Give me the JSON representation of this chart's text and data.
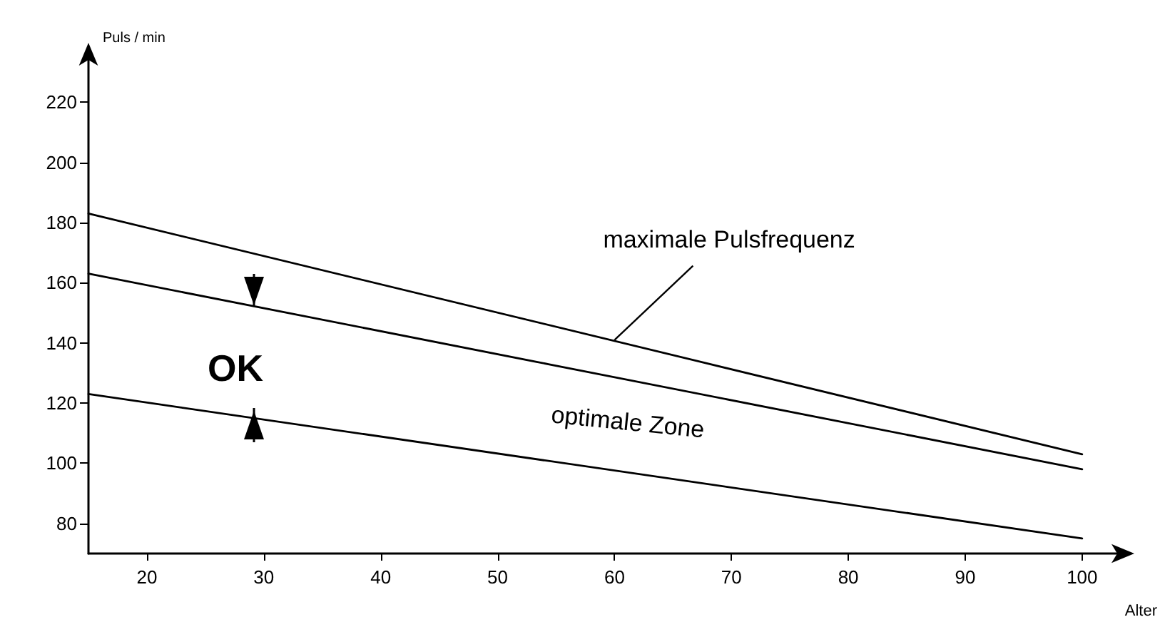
{
  "chart_data": {
    "type": "line",
    "xlabel": "Alter",
    "ylabel": "Puls / min",
    "xlim": [
      15,
      103
    ],
    "ylim": [
      70,
      235
    ],
    "xticks": [
      20,
      30,
      40,
      50,
      60,
      70,
      80,
      90,
      100
    ],
    "yticks": [
      80,
      100,
      120,
      140,
      160,
      180,
      200,
      220
    ],
    "x": [
      15,
      100
    ],
    "series": [
      {
        "color": "#000000",
        "values": [
          183,
          103
        ]
      },
      {
        "color": "#000000",
        "values": [
          163,
          98
        ]
      },
      {
        "color": "#000000",
        "values": [
          123,
          75
        ]
      }
    ],
    "annotations": [
      "OK",
      {
        "text": "maximale Pulsfrequenz",
        "x": 60,
        "y": 141
      },
      "optimale Zone"
    ],
    "grid": false,
    "marker": "none",
    "line_style": "solid"
  }
}
